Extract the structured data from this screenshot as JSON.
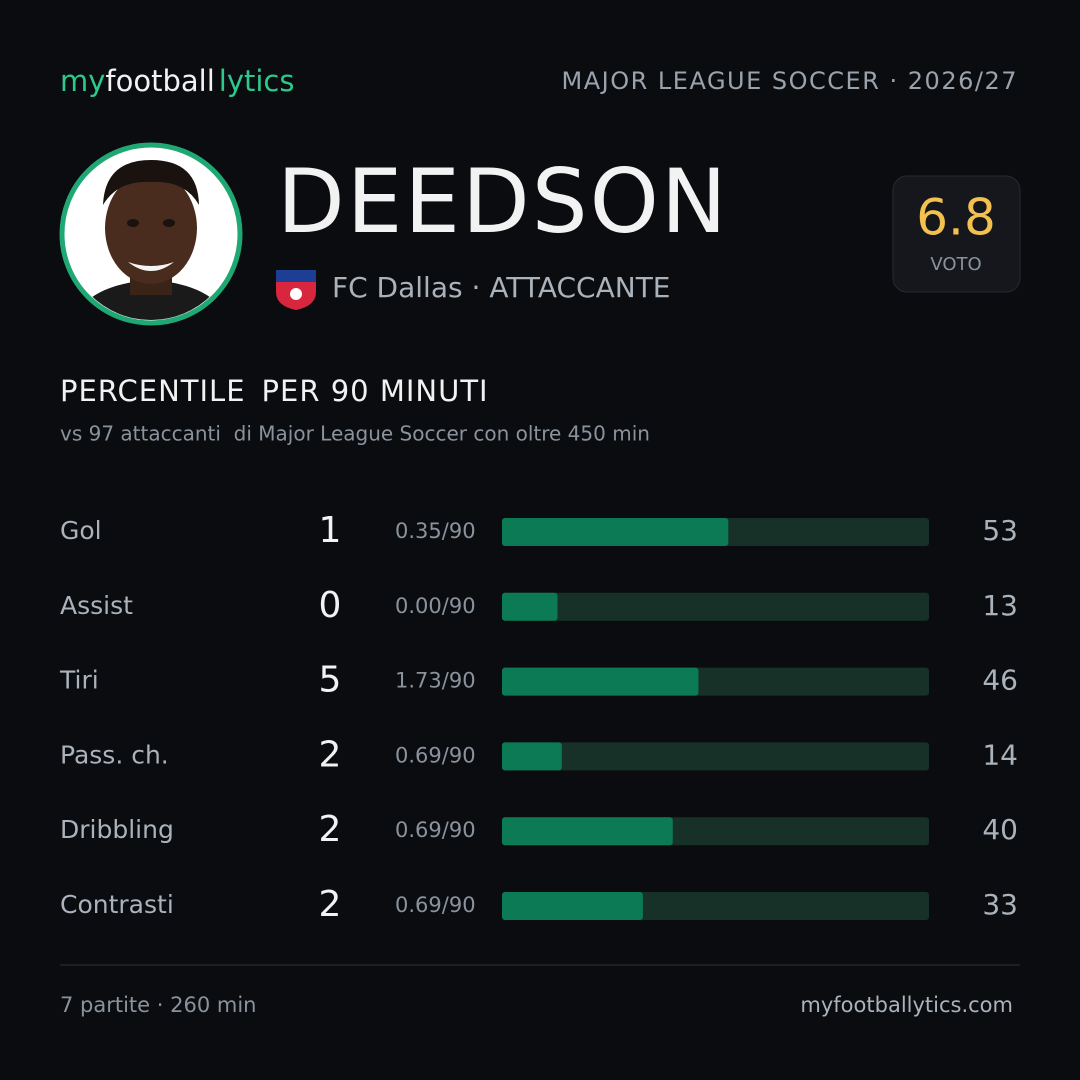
{
  "header": {
    "brand": [
      "my",
      "football",
      "lytics"
    ],
    "league": "MAJOR LEAGUE SOCCER · 2026/27"
  },
  "player": {
    "name": "DEEDSON",
    "team": "FC Dallas",
    "separator": "·",
    "role": "ATTACCANTE",
    "rating": 6.8,
    "rating_label": "VOTO"
  },
  "section": {
    "title": [
      "PERCENTILE",
      "PER 90 MINUTI"
    ],
    "subtitle": "vs 97 attaccanti  di Major League Soccer con oltre 450 min"
  },
  "stats": {
    "xlim": [
      0,
      100
    ],
    "rows": [
      {
        "label": "Gol",
        "total": 1,
        "per90": "0.35/90",
        "percentile": 53
      },
      {
        "label": "Assist",
        "total": 0,
        "per90": "0.00/90",
        "percentile": 13
      },
      {
        "label": "Tiri",
        "total": 5,
        "per90": "1.73/90",
        "percentile": 46
      },
      {
        "label": "Pass. ch.",
        "total": 2,
        "per90": "0.69/90",
        "percentile": 14
      },
      {
        "label": "Dribbling",
        "total": 2,
        "per90": "0.69/90",
        "percentile": 40
      },
      {
        "label": "Contrasti",
        "total": 2,
        "per90": "0.69/90",
        "percentile": 33
      }
    ]
  },
  "footer": {
    "summary": "7 partite · 260 min",
    "site": "myfootballytics.com"
  }
}
